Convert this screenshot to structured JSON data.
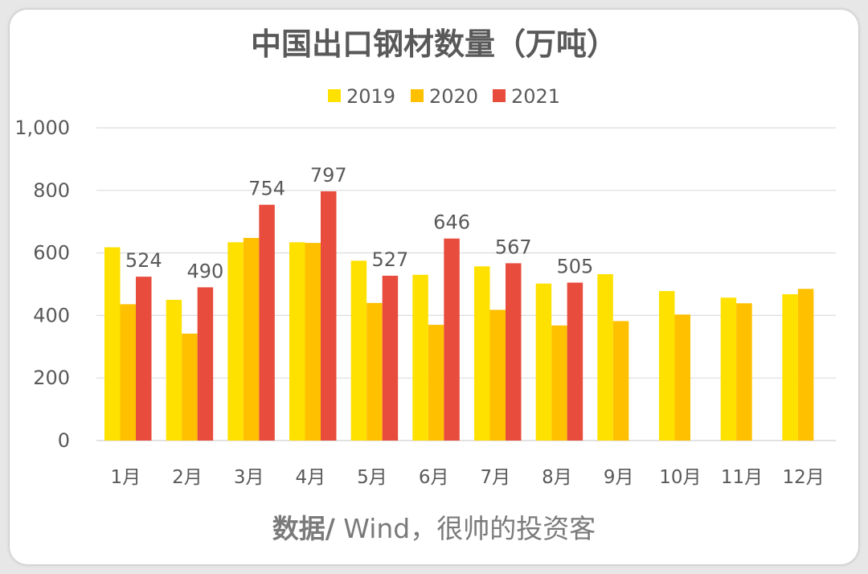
{
  "chart_data": {
    "type": "bar",
    "title": "中国出口钢材数量（万吨）",
    "categories": [
      "1月",
      "2月",
      "3月",
      "4月",
      "5月",
      "6月",
      "7月",
      "8月",
      "9月",
      "10月",
      "11月",
      "12月"
    ],
    "series": [
      {
        "name": "2019",
        "color": "#FFE100",
        "values": [
          618,
          450,
          634,
          634,
          575,
          530,
          557,
          502,
          532,
          478,
          457,
          468
        ]
      },
      {
        "name": "2020",
        "color": "#FFC000",
        "values": [
          436,
          342,
          648,
          632,
          440,
          370,
          418,
          368,
          382,
          403,
          439,
          485
        ]
      },
      {
        "name": "2021",
        "color": "#E84C3D",
        "values": [
          524,
          490,
          754,
          797,
          527,
          646,
          567,
          505,
          null,
          null,
          null,
          null
        ]
      }
    ],
    "data_labels_series": "2021",
    "y_ticks": [
      "0",
      "200",
      "400",
      "600",
      "800",
      "1,000"
    ],
    "ylim": [
      0,
      1000
    ],
    "grid": true,
    "legend_position": "top",
    "source_bold": "数据/",
    "source_rest": " Wind，很帅的投资客"
  }
}
